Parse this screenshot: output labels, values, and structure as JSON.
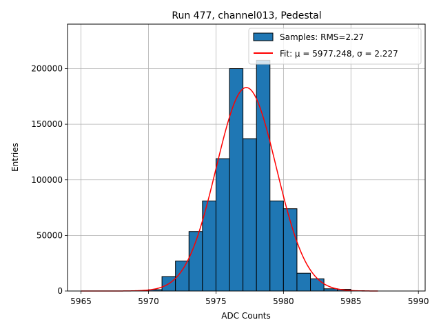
{
  "chart_data": {
    "type": "bar",
    "title": "Run 477, channel013, Pedestal",
    "xlabel": "ADC Counts",
    "ylabel": "Entries",
    "xlim": [
      5964,
      5990.5
    ],
    "ylim": [
      0,
      240000
    ],
    "xticks": [
      5965,
      5970,
      5975,
      5980,
      5985,
      5990
    ],
    "yticks": [
      0,
      50000,
      100000,
      150000,
      200000
    ],
    "grid": true,
    "legend_position": "top-right",
    "bin_width": 1,
    "bins": [
      {
        "x0": 5970,
        "value": 1200
      },
      {
        "x0": 5971,
        "value": 13000
      },
      {
        "x0": 5972,
        "value": 27000
      },
      {
        "x0": 5973,
        "value": 53500
      },
      {
        "x0": 5974,
        "value": 81000
      },
      {
        "x0": 5975,
        "value": 119000
      },
      {
        "x0": 5976,
        "value": 200000
      },
      {
        "x0": 5977,
        "value": 137000
      },
      {
        "x0": 5978,
        "value": 207500
      },
      {
        "x0": 5979,
        "value": 81000
      },
      {
        "x0": 5980,
        "value": 74000
      },
      {
        "x0": 5981,
        "value": 16000
      },
      {
        "x0": 5982,
        "value": 11000
      },
      {
        "x0": 5983,
        "value": 2000
      },
      {
        "x0": 5984,
        "value": 1500
      },
      {
        "x0": 5985,
        "value": 300
      }
    ],
    "fit": {
      "mu": 5977.248,
      "sigma": 2.227,
      "amplitude": 183000,
      "x_range": [
        5965,
        5987
      ]
    },
    "series": [
      {
        "name": "Samples: RMS=2.27",
        "kind": "histogram",
        "color": "#1f77b4"
      },
      {
        "name": "Fit: μ = 5977.248, σ = 2.227",
        "kind": "line",
        "color": "#ff0000"
      }
    ]
  }
}
